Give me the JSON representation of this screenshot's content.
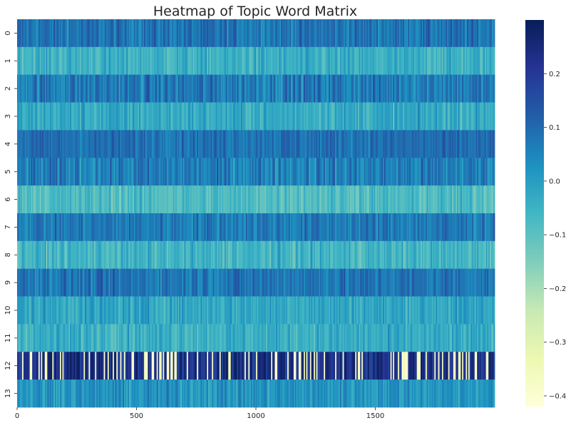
{
  "chart_data": {
    "type": "heatmap",
    "title": "Heatmap of Topic Word Matrix",
    "xlabel": "",
    "ylabel": "",
    "x_range": [
      0,
      2000
    ],
    "x_tick_labels": [
      "0",
      "500",
      "1000",
      "1500"
    ],
    "x_tick_values": [
      0,
      500,
      1000,
      1500
    ],
    "row_labels": [
      "0",
      "1",
      "2",
      "3",
      "4",
      "5",
      "6",
      "7",
      "8",
      "9",
      "10",
      "11",
      "12",
      "13"
    ],
    "row_mean_values": [
      0.08,
      -0.05,
      0.07,
      -0.03,
      0.09,
      0.06,
      -0.08,
      0.07,
      -0.06,
      0.08,
      -0.02,
      -0.04,
      0.15,
      0.02
    ],
    "row_std_values": [
      0.05,
      0.05,
      0.06,
      0.05,
      0.04,
      0.06,
      0.05,
      0.05,
      0.05,
      0.05,
      0.05,
      0.05,
      0.18,
      0.05
    ],
    "colormap": "YlGnBu",
    "colormap_stops": [
      "#ffffd9",
      "#edf8b1",
      "#c7e9b4",
      "#7fcdbb",
      "#41b6c4",
      "#1d91c0",
      "#225ea8",
      "#253494",
      "#081d58"
    ],
    "vmin": -0.42,
    "vmax": 0.3,
    "colorbar_ticks": [
      0.2,
      0.1,
      0.0,
      -0.1,
      -0.2,
      -0.3,
      -0.4
    ],
    "colorbar_tick_labels": [
      "0.2",
      "0.1",
      "0.0",
      "−0.1",
      "−0.2",
      "−0.3",
      "−0.4"
    ]
  }
}
